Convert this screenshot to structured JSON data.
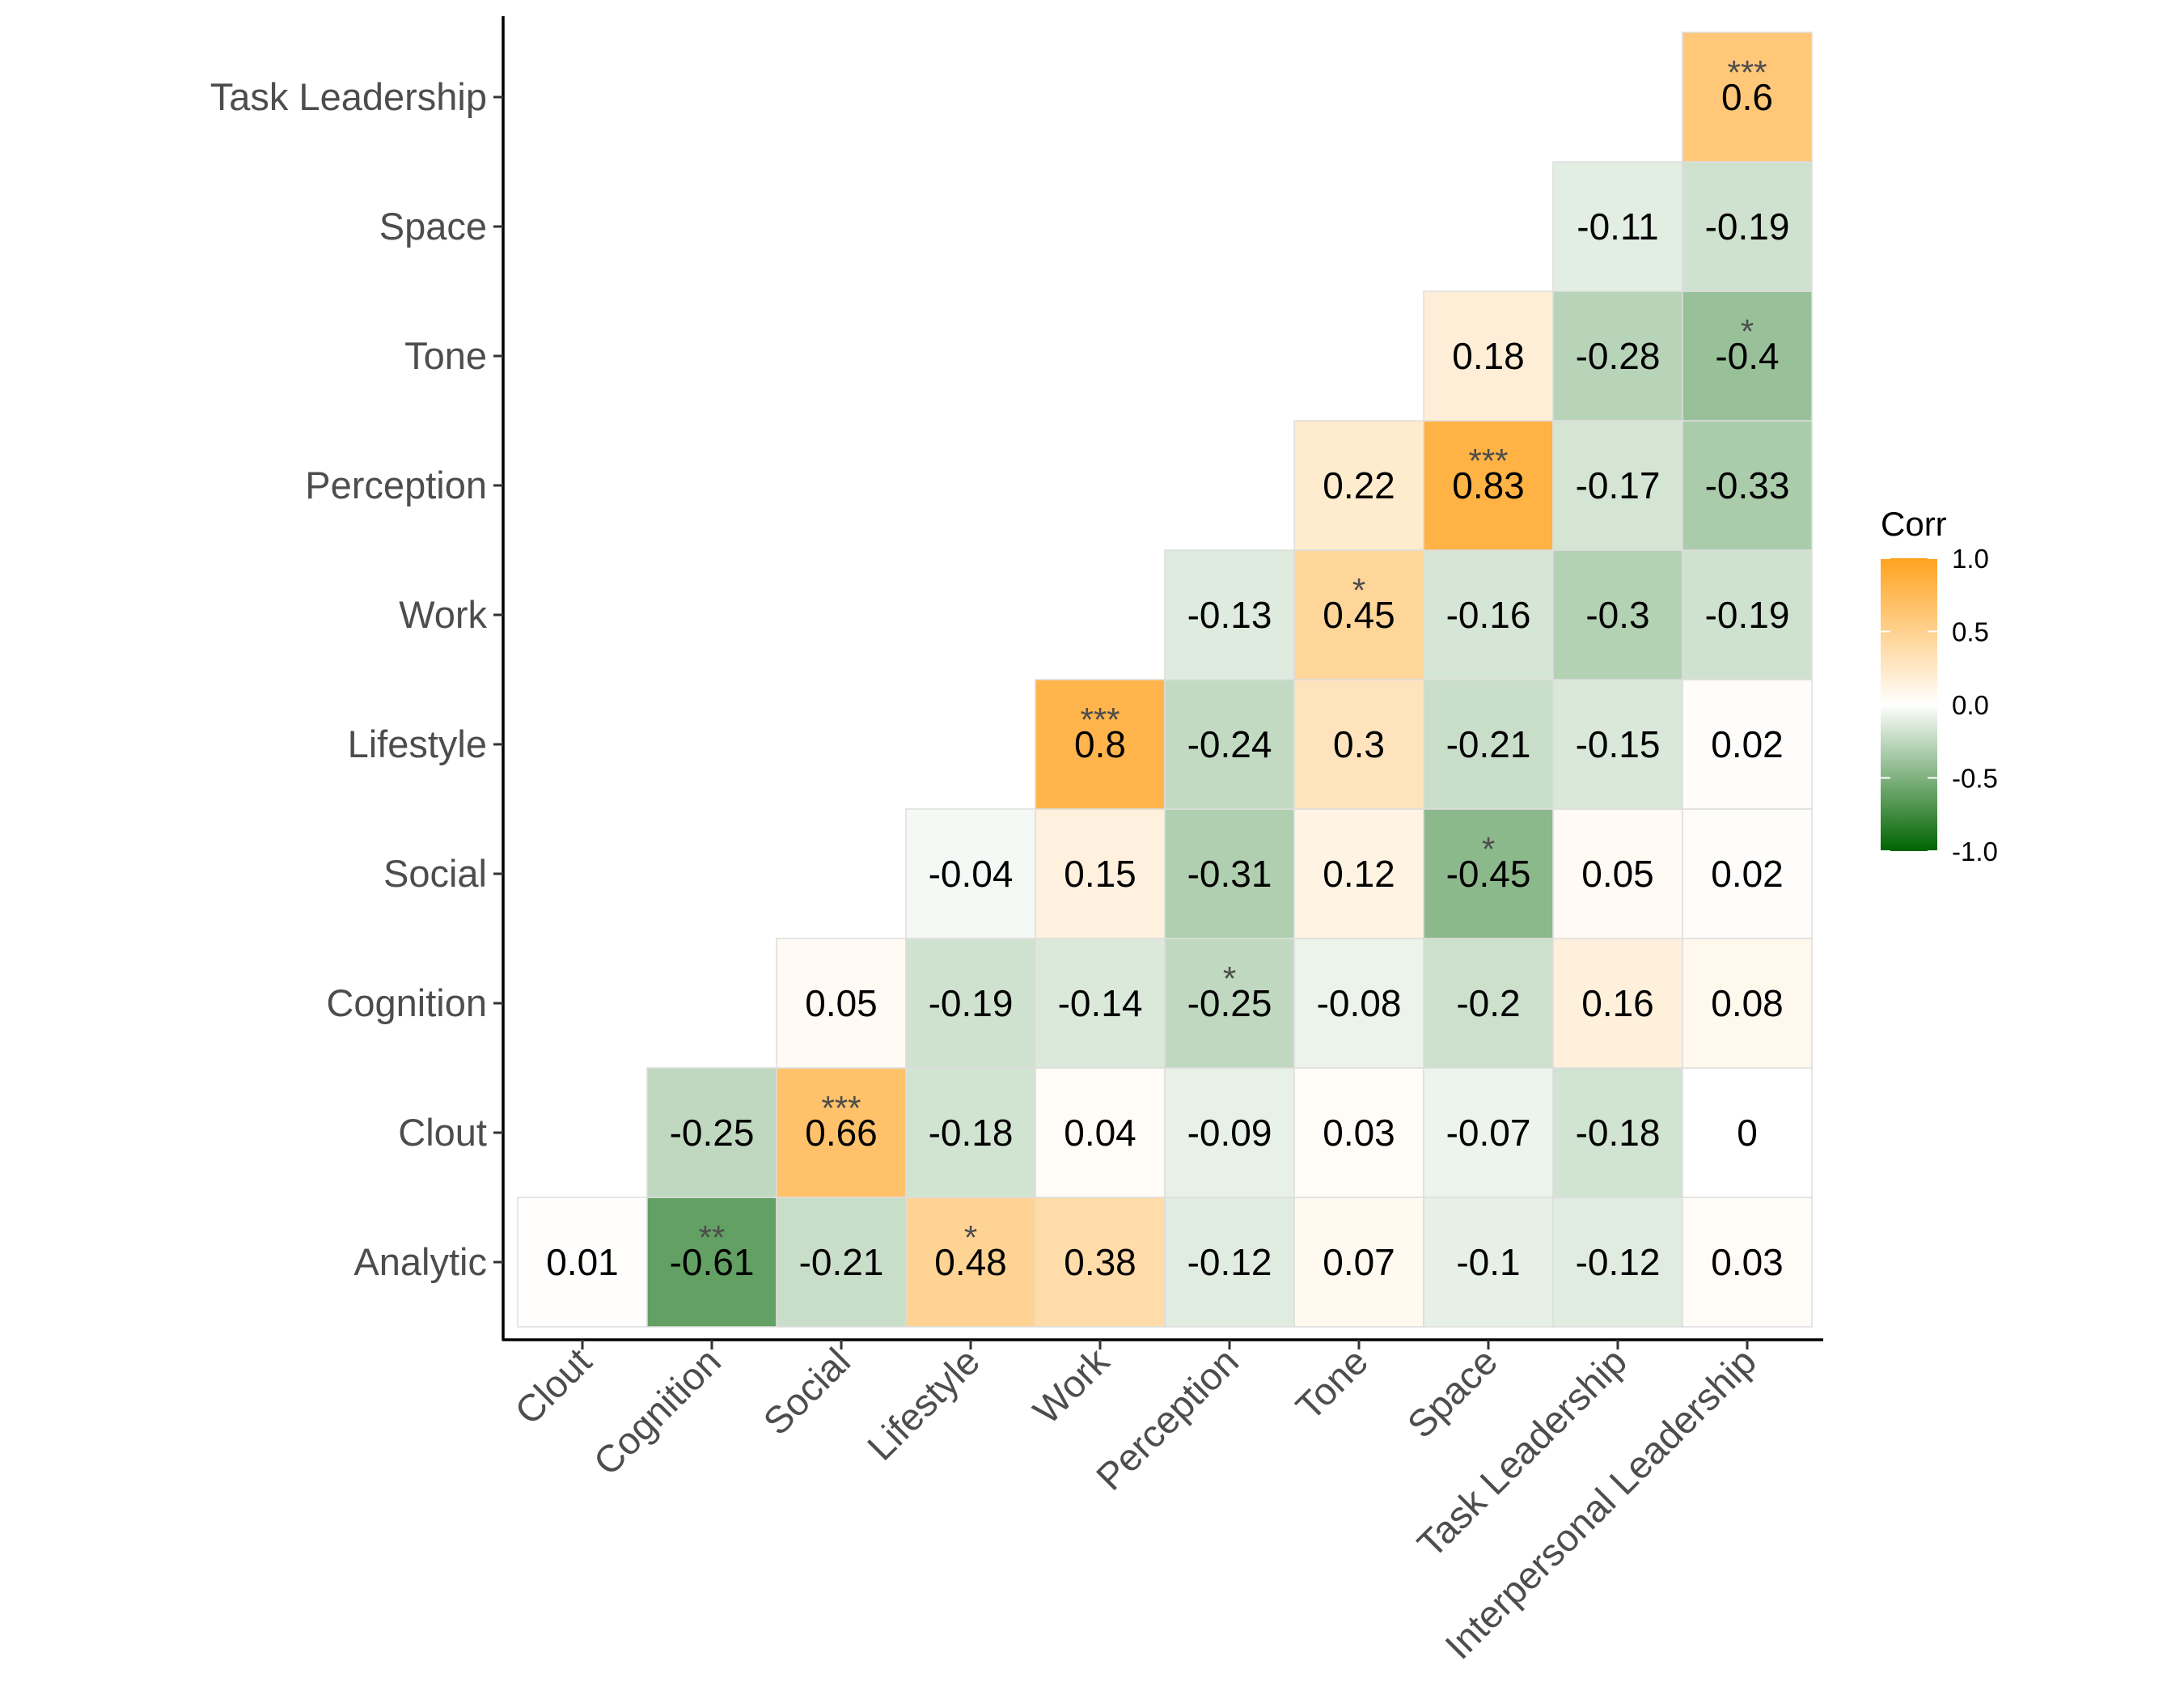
{
  "chart_data": {
    "type": "heatmap",
    "x_categories": [
      "Clout",
      "Cognition",
      "Social",
      "Lifestyle",
      "Work",
      "Perception",
      "Tone",
      "Space",
      "Task Leadership",
      "Interpersonal Leadership"
    ],
    "y_categories": [
      "Analytic",
      "Clout",
      "Cognition",
      "Social",
      "Lifestyle",
      "Work",
      "Perception",
      "Tone",
      "Space",
      "Task Leadership"
    ],
    "cells": [
      {
        "x": "Clout",
        "y": "Analytic",
        "label": "0.01",
        "value": 0.01,
        "sig": ""
      },
      {
        "x": "Cognition",
        "y": "Analytic",
        "label": "-0.61",
        "value": -0.61,
        "sig": "**"
      },
      {
        "x": "Social",
        "y": "Analytic",
        "label": "-0.21",
        "value": -0.21,
        "sig": ""
      },
      {
        "x": "Lifestyle",
        "y": "Analytic",
        "label": "0.48",
        "value": 0.48,
        "sig": "*"
      },
      {
        "x": "Work",
        "y": "Analytic",
        "label": "0.38",
        "value": 0.38,
        "sig": ""
      },
      {
        "x": "Perception",
        "y": "Analytic",
        "label": "-0.12",
        "value": -0.12,
        "sig": ""
      },
      {
        "x": "Tone",
        "y": "Analytic",
        "label": "0.07",
        "value": 0.07,
        "sig": ""
      },
      {
        "x": "Space",
        "y": "Analytic",
        "label": "-0.1",
        "value": -0.1,
        "sig": ""
      },
      {
        "x": "Task Leadership",
        "y": "Analytic",
        "label": "-0.12",
        "value": -0.12,
        "sig": ""
      },
      {
        "x": "Interpersonal Leadership",
        "y": "Analytic",
        "label": "0.03",
        "value": 0.03,
        "sig": ""
      },
      {
        "x": "Cognition",
        "y": "Clout",
        "label": "-0.25",
        "value": -0.25,
        "sig": ""
      },
      {
        "x": "Social",
        "y": "Clout",
        "label": "0.66",
        "value": 0.66,
        "sig": "***"
      },
      {
        "x": "Lifestyle",
        "y": "Clout",
        "label": "-0.18",
        "value": -0.18,
        "sig": ""
      },
      {
        "x": "Work",
        "y": "Clout",
        "label": "0.04",
        "value": 0.04,
        "sig": ""
      },
      {
        "x": "Perception",
        "y": "Clout",
        "label": "-0.09",
        "value": -0.09,
        "sig": ""
      },
      {
        "x": "Tone",
        "y": "Clout",
        "label": "0.03",
        "value": 0.03,
        "sig": ""
      },
      {
        "x": "Space",
        "y": "Clout",
        "label": "-0.07",
        "value": -0.07,
        "sig": ""
      },
      {
        "x": "Task Leadership",
        "y": "Clout",
        "label": "-0.18",
        "value": -0.18,
        "sig": ""
      },
      {
        "x": "Interpersonal Leadership",
        "y": "Clout",
        "label": "0",
        "value": 0,
        "sig": ""
      },
      {
        "x": "Social",
        "y": "Cognition",
        "label": "0.05",
        "value": 0.05,
        "sig": ""
      },
      {
        "x": "Lifestyle",
        "y": "Cognition",
        "label": "-0.19",
        "value": -0.19,
        "sig": ""
      },
      {
        "x": "Work",
        "y": "Cognition",
        "label": "-0.14",
        "value": -0.14,
        "sig": ""
      },
      {
        "x": "Perception",
        "y": "Cognition",
        "label": "-0.25",
        "value": -0.25,
        "sig": "*"
      },
      {
        "x": "Tone",
        "y": "Cognition",
        "label": "-0.08",
        "value": -0.08,
        "sig": ""
      },
      {
        "x": "Space",
        "y": "Cognition",
        "label": "-0.2",
        "value": -0.2,
        "sig": ""
      },
      {
        "x": "Task Leadership",
        "y": "Cognition",
        "label": "0.16",
        "value": 0.16,
        "sig": ""
      },
      {
        "x": "Interpersonal Leadership",
        "y": "Cognition",
        "label": "0.08",
        "value": 0.08,
        "sig": ""
      },
      {
        "x": "Lifestyle",
        "y": "Social",
        "label": "-0.04",
        "value": -0.04,
        "sig": ""
      },
      {
        "x": "Work",
        "y": "Social",
        "label": "0.15",
        "value": 0.15,
        "sig": ""
      },
      {
        "x": "Perception",
        "y": "Social",
        "label": "-0.31",
        "value": -0.31,
        "sig": ""
      },
      {
        "x": "Tone",
        "y": "Social",
        "label": "0.12",
        "value": 0.12,
        "sig": ""
      },
      {
        "x": "Space",
        "y": "Social",
        "label": "-0.45",
        "value": -0.45,
        "sig": "*"
      },
      {
        "x": "Task Leadership",
        "y": "Social",
        "label": "0.05",
        "value": 0.05,
        "sig": ""
      },
      {
        "x": "Interpersonal Leadership",
        "y": "Social",
        "label": "0.02",
        "value": 0.02,
        "sig": ""
      },
      {
        "x": "Work",
        "y": "Lifestyle",
        "label": "0.8",
        "value": 0.8,
        "sig": "***"
      },
      {
        "x": "Perception",
        "y": "Lifestyle",
        "label": "-0.24",
        "value": -0.24,
        "sig": ""
      },
      {
        "x": "Tone",
        "y": "Lifestyle",
        "label": "0.3",
        "value": 0.3,
        "sig": ""
      },
      {
        "x": "Space",
        "y": "Lifestyle",
        "label": "-0.21",
        "value": -0.21,
        "sig": ""
      },
      {
        "x": "Task Leadership",
        "y": "Lifestyle",
        "label": "-0.15",
        "value": -0.15,
        "sig": ""
      },
      {
        "x": "Interpersonal Leadership",
        "y": "Lifestyle",
        "label": "0.02",
        "value": 0.02,
        "sig": ""
      },
      {
        "x": "Perception",
        "y": "Work",
        "label": "-0.13",
        "value": -0.13,
        "sig": ""
      },
      {
        "x": "Tone",
        "y": "Work",
        "label": "0.45",
        "value": 0.45,
        "sig": "*"
      },
      {
        "x": "Space",
        "y": "Work",
        "label": "-0.16",
        "value": -0.16,
        "sig": ""
      },
      {
        "x": "Task Leadership",
        "y": "Work",
        "label": "-0.3",
        "value": -0.3,
        "sig": ""
      },
      {
        "x": "Interpersonal Leadership",
        "y": "Work",
        "label": "-0.19",
        "value": -0.19,
        "sig": ""
      },
      {
        "x": "Tone",
        "y": "Perception",
        "label": "0.22",
        "value": 0.22,
        "sig": ""
      },
      {
        "x": "Space",
        "y": "Perception",
        "label": "0.83",
        "value": 0.83,
        "sig": "***"
      },
      {
        "x": "Task Leadership",
        "y": "Perception",
        "label": "-0.17",
        "value": -0.17,
        "sig": ""
      },
      {
        "x": "Interpersonal Leadership",
        "y": "Perception",
        "label": "-0.33",
        "value": -0.33,
        "sig": ""
      },
      {
        "x": "Space",
        "y": "Tone",
        "label": "0.18",
        "value": 0.18,
        "sig": ""
      },
      {
        "x": "Task Leadership",
        "y": "Tone",
        "label": "-0.28",
        "value": -0.28,
        "sig": ""
      },
      {
        "x": "Interpersonal Leadership",
        "y": "Tone",
        "label": "-0.4",
        "value": -0.4,
        "sig": "*"
      },
      {
        "x": "Task Leadership",
        "y": "Space",
        "label": "-0.11",
        "value": -0.11,
        "sig": ""
      },
      {
        "x": "Interpersonal Leadership",
        "y": "Space",
        "label": "-0.19",
        "value": -0.19,
        "sig": ""
      },
      {
        "x": "Interpersonal Leadership",
        "y": "Task Leadership",
        "label": "0.6",
        "value": 0.6,
        "sig": "***"
      }
    ],
    "legend": {
      "title": "Corr",
      "ticks": [
        "1.0",
        "0.5",
        "0.0",
        "-0.5",
        "-1.0"
      ],
      "range": [
        -1,
        1
      ],
      "placement": "right"
    },
    "colors": {
      "high": "#FFA31F",
      "mid": "#FFFFFF",
      "low": "#006400",
      "cell_border": "#DDDDDD"
    },
    "grid": false
  }
}
